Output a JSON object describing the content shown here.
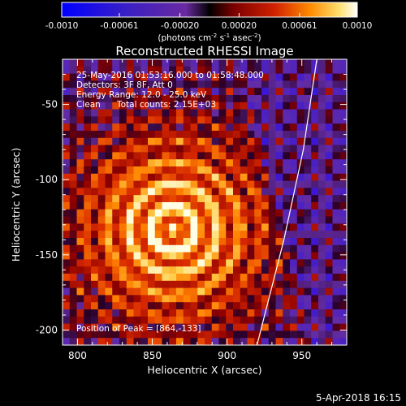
{
  "colorbar": {
    "ticks": [
      "-0.0010",
      "-0.00061",
      "-0.00020",
      "0.00020",
      "0.00061",
      "0.0010"
    ],
    "tick_values": [
      -0.001,
      -0.00061,
      -0.0002,
      0.0002,
      0.00061,
      0.001
    ],
    "range": [
      -0.001,
      0.001
    ],
    "units": "(photons cm",
    "units_sup1": "-2",
    "units_mid1": " s",
    "units_sup2": "-1",
    "units_mid2": " asec",
    "units_sup3": "-2",
    "units_end": ")"
  },
  "chart_data": {
    "type": "heatmap",
    "title": "Reconstructed RHESSI Image",
    "xlabel": "Heliocentric X (arcsec)",
    "ylabel": "Heliocentric Y (arcsec)",
    "xlim": [
      790,
      980
    ],
    "ylim": [
      -210,
      -20
    ],
    "xticks": [
      800,
      850,
      900,
      950
    ],
    "yticks": [
      -50,
      -100,
      -150,
      -200
    ],
    "xtick_labels": [
      "800",
      "850",
      "900",
      "950"
    ],
    "ytick_labels": [
      "-50",
      "-100",
      "-150",
      "-200"
    ],
    "peak": [
      864,
      -133
    ],
    "limb_arc": [
      [
        960,
        -20
      ],
      [
        951,
        -80
      ],
      [
        938,
        -140
      ],
      [
        920,
        -210
      ]
    ],
    "annotations": {
      "time": "25-May-2016 01:53:16.000 to 01:58:48.000",
      "detectors": "Detectors: 3F 8F, Att 0",
      "energy": "Energy Range: 12.0 - 25.0 keV",
      "clean": "Clean",
      "counts": "Total counts: 2.15E+03",
      "peak_label": "Position of Peak = [864,-133]"
    }
  },
  "footer": {
    "date": "5-Apr-2018 16:15"
  }
}
